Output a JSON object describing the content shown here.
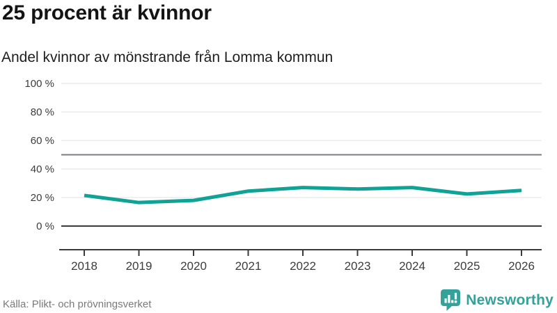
{
  "header": {
    "title": "25 procent är kvinnor",
    "subtitle": "Andel kvinnor av mönstrande från Lomma kommun"
  },
  "chart_data": {
    "type": "line",
    "title": "25 procent är kvinnor",
    "subtitle": "Andel kvinnor av mönstrande från Lomma kommun",
    "categories": [
      "2018",
      "2019",
      "2020",
      "2021",
      "2022",
      "2023",
      "2024",
      "2025",
      "2026"
    ],
    "series": [
      {
        "name": "Andel kvinnor av mönstrande",
        "values": [
          21.5,
          16.5,
          18,
          24.5,
          27,
          26,
          27,
          22.5,
          25
        ]
      }
    ],
    "xlabel": "",
    "ylabel": "",
    "ylim": [
      0,
      100
    ],
    "yticks": [
      0,
      20,
      40,
      60,
      80,
      100
    ],
    "ytick_labels": [
      "0 %",
      "20 %",
      "40 %",
      "60 %",
      "80 %",
      "100 %"
    ],
    "reference_line": 50,
    "grid": true,
    "legend_position": "none",
    "colors": {
      "line": "#10a296",
      "grid": "#e0e0e0",
      "reference": "#7c7c82",
      "axis": "#3a3a3a",
      "tick_text": "#3c3c3c"
    }
  },
  "footer": {
    "source": "Källa: Plikt- och prövningsverket",
    "brand": "Newsworthy",
    "brand_color": "#35a19b"
  }
}
